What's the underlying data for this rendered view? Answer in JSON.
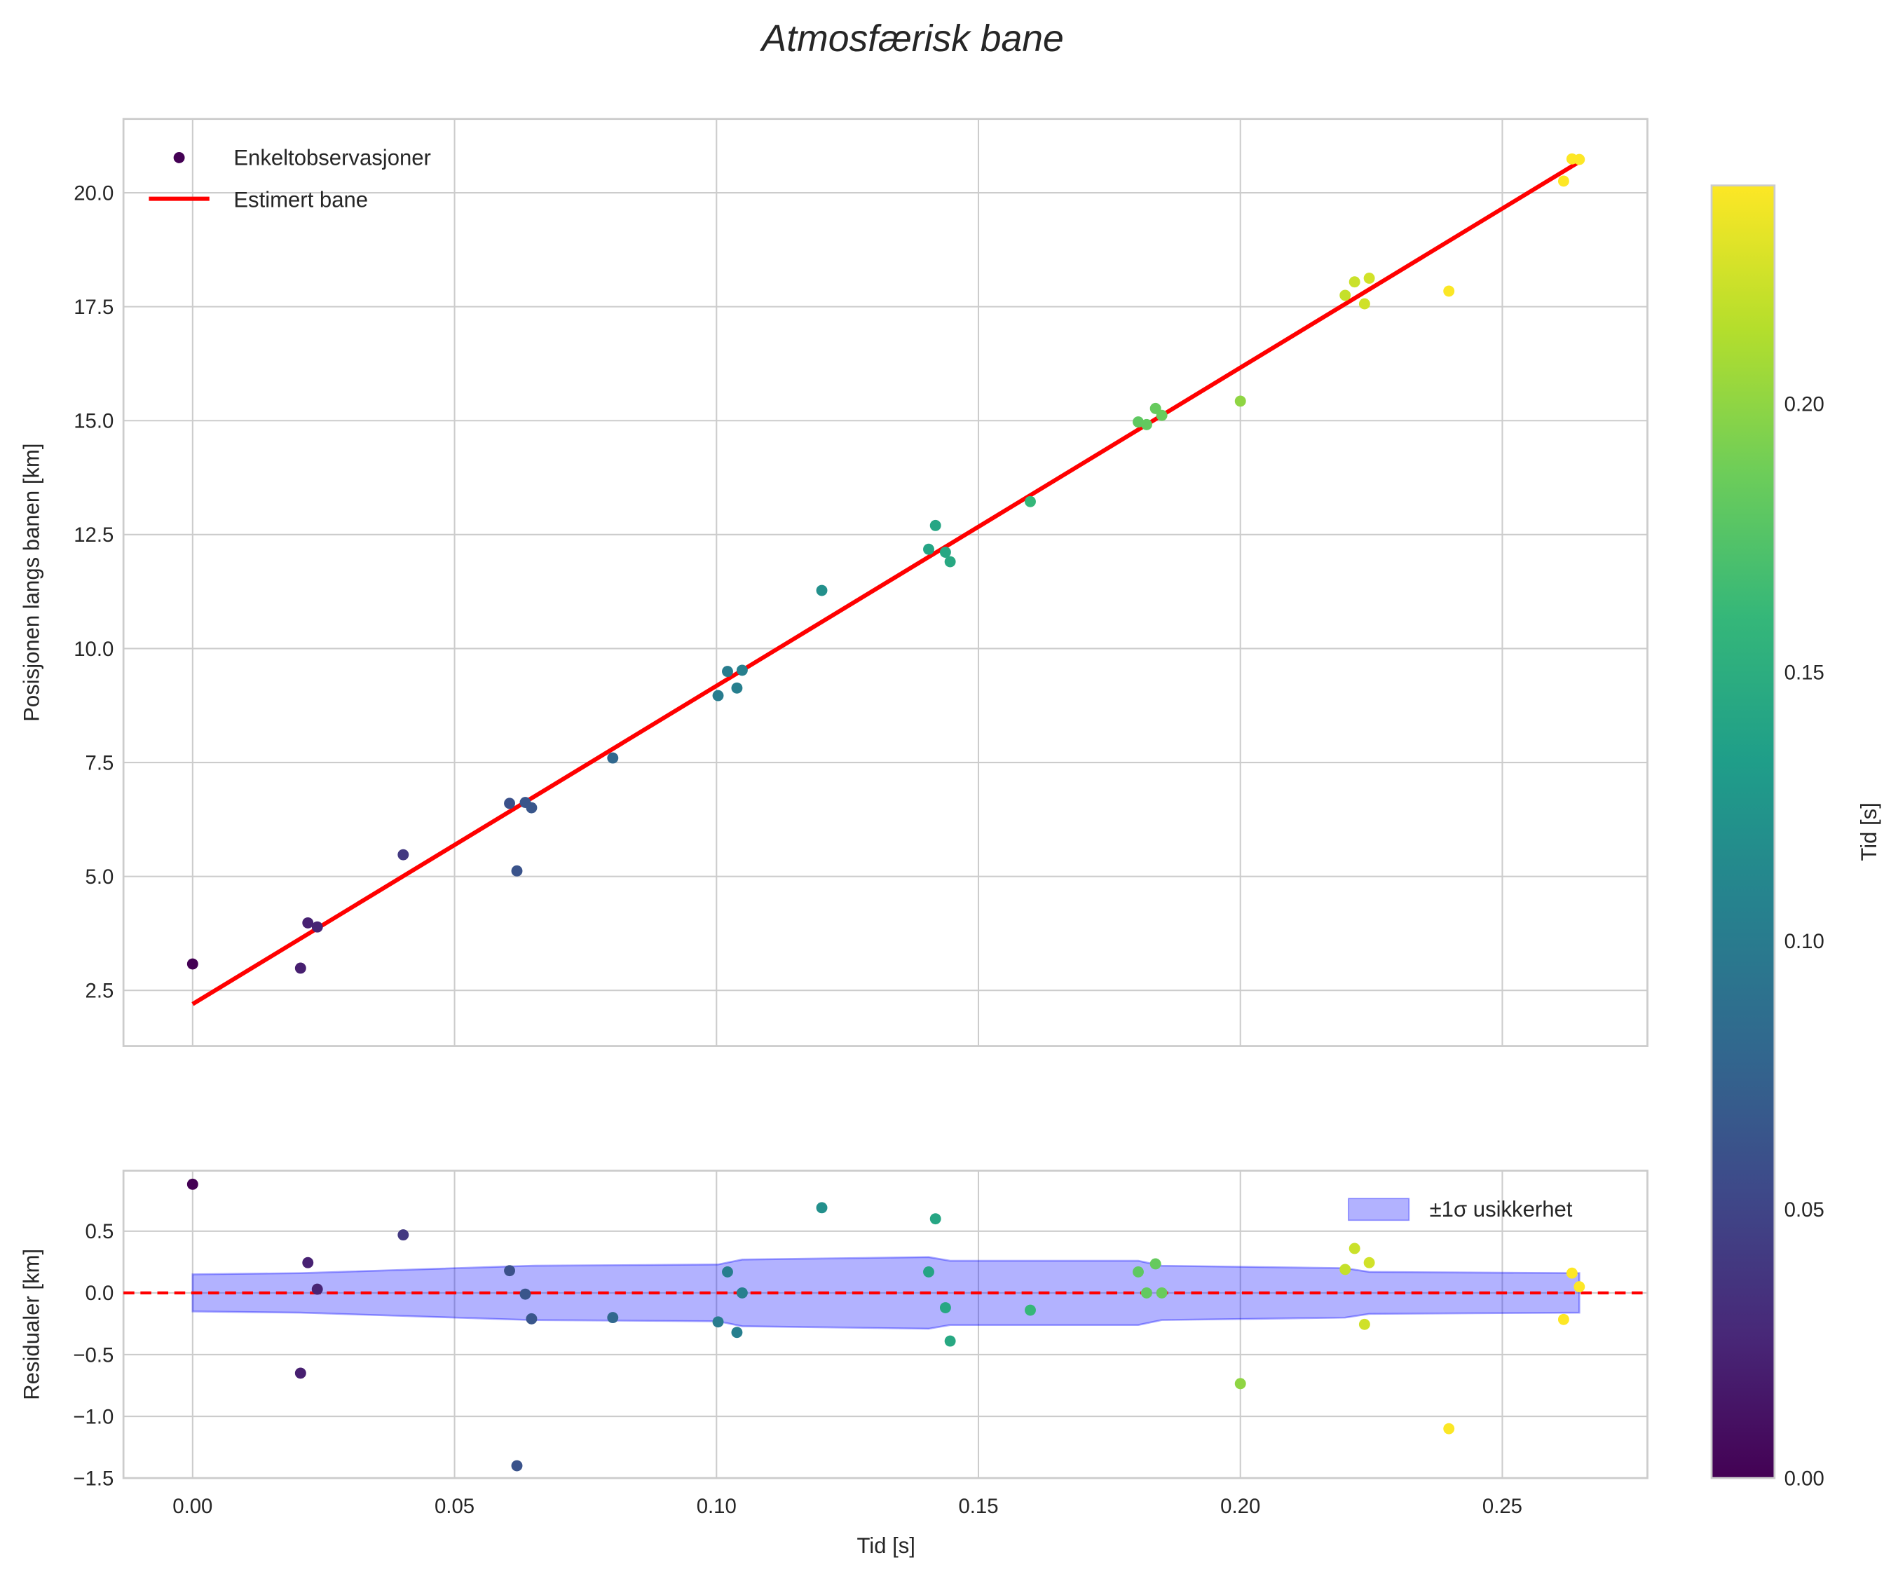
{
  "chart_data": {
    "type": "scatter",
    "title": "Atmosfærisk bane",
    "xlabel": "Tid [s]",
    "xlim": [
      -0.0132,
      0.2777
    ],
    "xticks": [
      0.0,
      0.05,
      0.1,
      0.15,
      0.2,
      0.25
    ],
    "xtick_labels": [
      "0.00",
      "0.05",
      "0.10",
      "0.15",
      "0.20",
      "0.25"
    ],
    "top": {
      "ylabel": "Posisjonen langs banen [km]",
      "ylim": [
        1.28,
        21.62
      ],
      "yticks": [
        2.5,
        5.0,
        7.5,
        10.0,
        12.5,
        15.0,
        17.5,
        20.0
      ],
      "ytick_labels": [
        "2.5",
        "5.0",
        "7.5",
        "10.0",
        "12.5",
        "15.0",
        "17.5",
        "20.0"
      ],
      "legend": [
        "Enkeltobservasjoner",
        "Estimert bane"
      ],
      "legend_position": "top-left",
      "fit_line": {
        "t": [
          0.0,
          0.2647
        ],
        "pos": [
          2.2,
          20.68
        ],
        "color": "#ff0000"
      }
    },
    "bottom": {
      "ylabel": "Residualer [km]",
      "ylim": [
        -1.5,
        0.99
      ],
      "yticks": [
        -1.5,
        -1.0,
        -0.5,
        0.0,
        0.5
      ],
      "ytick_labels": [
        "−1.5",
        "−1.0",
        "−0.5",
        "0.0",
        "0.5"
      ],
      "legend": [
        "±1σ usikkerhet"
      ],
      "legend_position": "top-right",
      "band_color": "#0000ff",
      "band": {
        "t": [
          0.0,
          0.0206,
          0.0647,
          0.1003,
          0.1049,
          0.1405,
          0.1446,
          0.1805,
          0.185,
          0.22,
          0.2246,
          0.2647
        ],
        "sigma": [
          0.15,
          0.16,
          0.22,
          0.23,
          0.27,
          0.29,
          0.26,
          0.26,
          0.22,
          0.2,
          0.17,
          0.16
        ]
      }
    },
    "points": {
      "t": [
        0.0,
        0.0206,
        0.022,
        0.0238,
        0.0402,
        0.0605,
        0.0619,
        0.0635,
        0.0647,
        0.0802,
        0.1003,
        0.1021,
        0.1039,
        0.1049,
        0.1201,
        0.1405,
        0.1418,
        0.1437,
        0.1446,
        0.1599,
        0.1805,
        0.1821,
        0.1838,
        0.185,
        0.2,
        0.22,
        0.2218,
        0.2237,
        0.2246,
        0.2398,
        0.2617,
        0.2633,
        0.2647
      ],
      "residual": [
        0.88,
        -0.65,
        0.245,
        0.03,
        0.47,
        0.18,
        -1.4,
        -0.01,
        -0.21,
        -0.2,
        -0.235,
        0.17,
        -0.32,
        0.0,
        0.69,
        0.17,
        0.6,
        -0.12,
        -0.39,
        -0.14,
        0.17,
        0.0,
        0.235,
        0.0,
        -0.735,
        0.19,
        0.36,
        -0.255,
        0.245,
        -1.1,
        -0.215,
        0.16,
        0.05
      ]
    },
    "colorbar": {
      "label": "Tid [s]",
      "colormap": "viridis",
      "range": [
        0.0,
        0.2406
      ],
      "ticks": [
        0.0,
        0.05,
        0.1,
        0.15,
        0.2
      ],
      "tick_labels": [
        "0.00",
        "0.05",
        "0.10",
        "0.15",
        "0.20"
      ]
    }
  }
}
